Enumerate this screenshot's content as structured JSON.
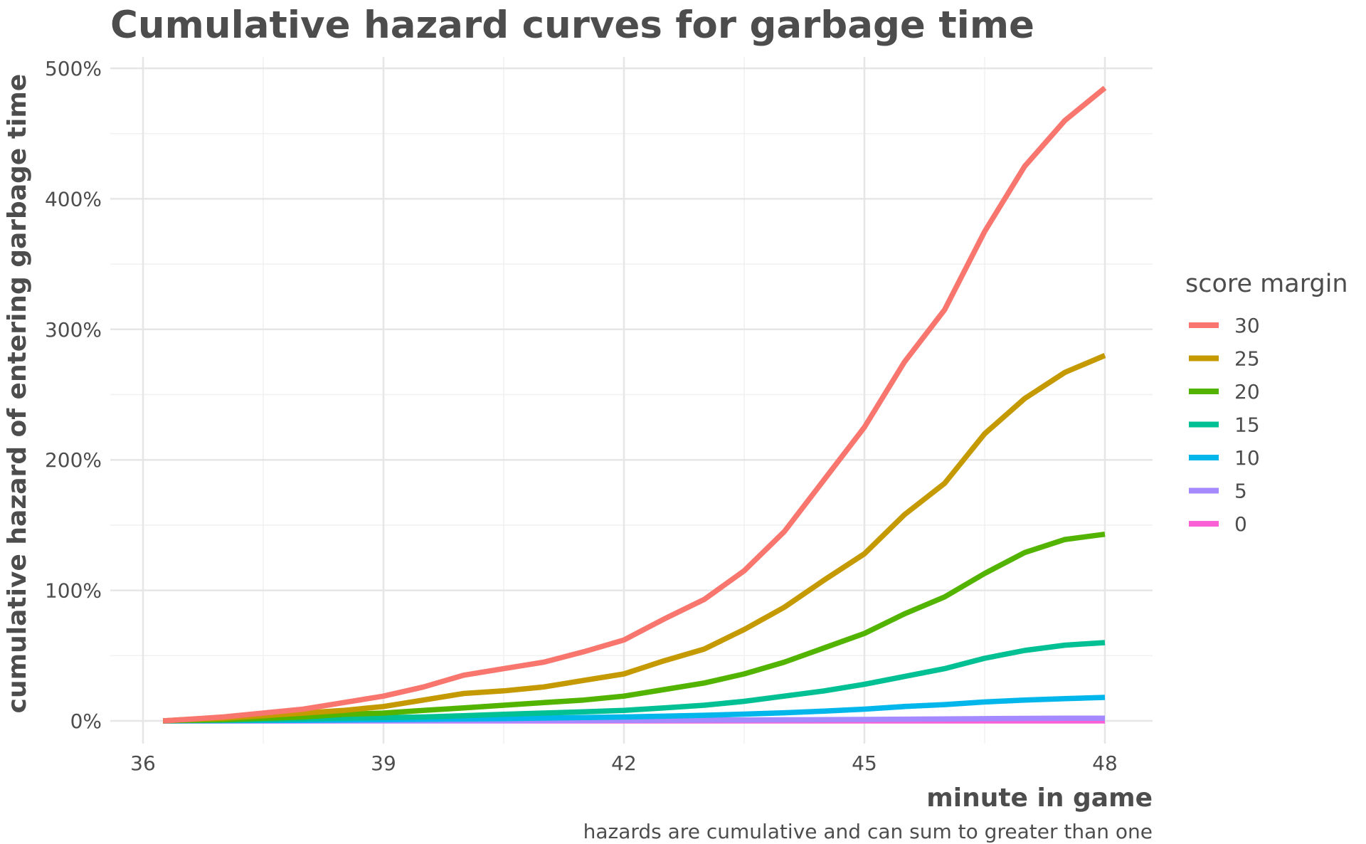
{
  "chart_data": {
    "type": "line",
    "title": "Cumulative hazard curves for garbage time",
    "xlabel": "minute in game",
    "ylabel": "cumulative hazard of entering garbage time",
    "caption": "hazards are cumulative and can sum to greater than one",
    "xlim": [
      36,
      48
    ],
    "ylim": [
      0,
      5
    ],
    "x_ticks": [
      36,
      39,
      42,
      45,
      48
    ],
    "x_tick_labels": [
      "36",
      "39",
      "42",
      "45",
      "48"
    ],
    "y_ticks": [
      0,
      1,
      2,
      3,
      4,
      5
    ],
    "y_tick_labels": [
      "0%",
      "100%",
      "200%",
      "300%",
      "400%",
      "500%"
    ],
    "grid": true,
    "legend": {
      "title": "score margin",
      "placement": "right"
    },
    "x": [
      36.25,
      36.5,
      37.0,
      37.5,
      38.0,
      38.5,
      39.0,
      39.5,
      40.0,
      40.5,
      41.0,
      41.5,
      42.0,
      42.5,
      43.0,
      43.5,
      44.0,
      44.5,
      45.0,
      45.5,
      46.0,
      46.5,
      47.0,
      47.5,
      48.0
    ],
    "series": [
      {
        "name": "30",
        "color": "#F8766D",
        "values": [
          0.0,
          0.01,
          0.03,
          0.06,
          0.09,
          0.14,
          0.19,
          0.26,
          0.35,
          0.4,
          0.45,
          0.53,
          0.62,
          0.78,
          0.93,
          1.15,
          1.45,
          1.85,
          2.25,
          2.75,
          3.15,
          3.75,
          4.25,
          4.6,
          4.85
        ]
      },
      {
        "name": "25",
        "color": "#C49A00",
        "values": [
          0.0,
          0.01,
          0.02,
          0.04,
          0.06,
          0.08,
          0.11,
          0.16,
          0.21,
          0.23,
          0.26,
          0.31,
          0.36,
          0.46,
          0.55,
          0.7,
          0.87,
          1.08,
          1.28,
          1.58,
          1.82,
          2.2,
          2.47,
          2.67,
          2.8
        ]
      },
      {
        "name": "20",
        "color": "#53B400",
        "values": [
          0.0,
          0.005,
          0.01,
          0.02,
          0.03,
          0.05,
          0.06,
          0.08,
          0.1,
          0.12,
          0.14,
          0.16,
          0.19,
          0.24,
          0.29,
          0.36,
          0.45,
          0.56,
          0.67,
          0.82,
          0.95,
          1.13,
          1.29,
          1.39,
          1.43
        ]
      },
      {
        "name": "15",
        "color": "#00C094",
        "values": [
          0.0,
          0.002,
          0.005,
          0.01,
          0.015,
          0.02,
          0.025,
          0.03,
          0.04,
          0.05,
          0.06,
          0.07,
          0.08,
          0.1,
          0.12,
          0.15,
          0.19,
          0.23,
          0.28,
          0.34,
          0.4,
          0.48,
          0.54,
          0.58,
          0.6
        ]
      },
      {
        "name": "10",
        "color": "#00B6EB",
        "values": [
          0.0,
          0.001,
          0.002,
          0.003,
          0.005,
          0.007,
          0.01,
          0.012,
          0.015,
          0.018,
          0.022,
          0.026,
          0.03,
          0.036,
          0.043,
          0.052,
          0.062,
          0.075,
          0.09,
          0.11,
          0.125,
          0.145,
          0.16,
          0.17,
          0.18
        ]
      },
      {
        "name": "5",
        "color": "#A58AFF",
        "values": [
          0.0,
          0.0,
          0.0,
          0.0,
          0.0005,
          0.001,
          0.001,
          0.0015,
          0.002,
          0.002,
          0.003,
          0.003,
          0.004,
          0.005,
          0.006,
          0.007,
          0.008,
          0.009,
          0.011,
          0.013,
          0.015,
          0.017,
          0.019,
          0.02,
          0.02
        ]
      },
      {
        "name": "0",
        "color": "#FB61D7",
        "values": [
          0.0,
          0.0,
          0.0,
          0.0,
          0.0,
          0.0,
          0.0,
          0.0,
          0.0,
          0.0,
          0.0,
          0.0,
          0.0,
          0.0,
          0.0,
          0.0,
          0.0,
          0.0,
          0.0,
          0.0,
          0.0,
          0.0,
          0.0,
          0.0,
          0.0
        ]
      }
    ]
  }
}
